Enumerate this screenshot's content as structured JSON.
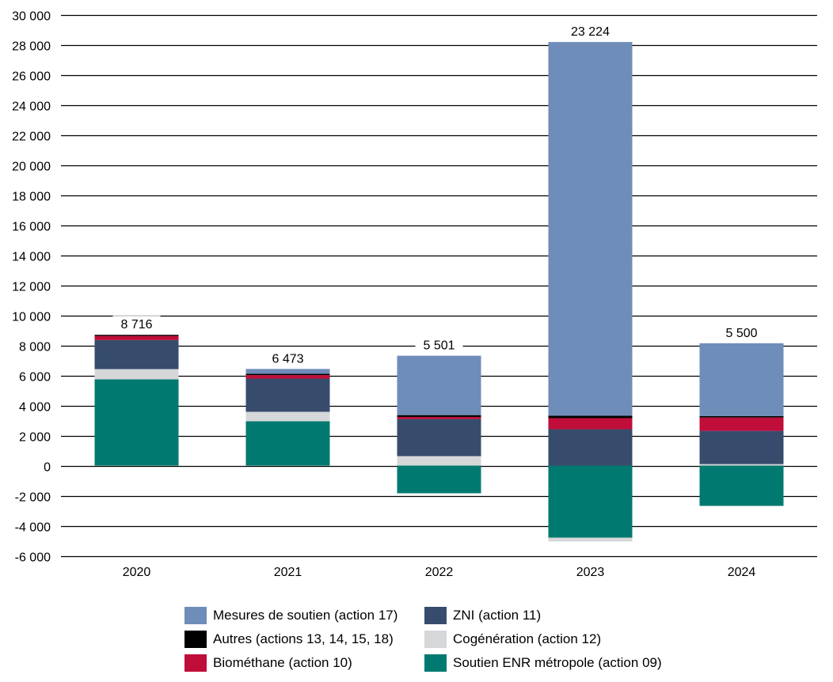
{
  "chart_data": {
    "type": "bar",
    "stacked": true,
    "title": "",
    "xlabel": "",
    "ylabel": "",
    "ylim": [
      -6000,
      30000
    ],
    "ytick_step": 2000,
    "yticks": [
      "30 000",
      "28 000",
      "26 000",
      "24 000",
      "22 000",
      "20 000",
      "18 000",
      "16 000",
      "14 000",
      "12 000",
      "10 000",
      "8 000",
      "6 000",
      "4 000",
      "2 000",
      "0",
      "-2 000",
      "-4 000",
      "-6 000"
    ],
    "grid": true,
    "legend_position": "bottom",
    "categories": [
      "2020",
      "2021",
      "2022",
      "2023",
      "2024"
    ],
    "totals": [
      8716,
      6473,
      5501,
      23224,
      5500
    ],
    "total_labels": [
      "8 716",
      "6 473",
      "5 501",
      "23 224",
      "5 500"
    ],
    "series": [
      {
        "name": "Soutien ENR métropole (action 09)",
        "color": "#007a70",
        "values": [
          5740,
          2950,
          -1840,
          -4790,
          -2680
        ]
      },
      {
        "name": "Cogénération (action 12)",
        "color": "#d6d7d9",
        "values": [
          680,
          630,
          630,
          -260,
          100
        ]
      },
      {
        "name": "ZNI (action 11)",
        "color": "#374c6c",
        "values": [
          1930,
          2210,
          2470,
          2420,
          2210
        ]
      },
      {
        "name": "Biométhane (action 10)",
        "color": "#c00d3a",
        "values": [
          280,
          230,
          140,
          740,
          890
        ]
      },
      {
        "name": "Autres (actions 13, 14, 15, 18)",
        "color": "#000000",
        "values": [
          70,
          90,
          120,
          160,
          100
        ]
      },
      {
        "name": "Mesures de soutien (action 17)",
        "color": "#6f8db9",
        "values": [
          0,
          320,
          3950,
          24860,
          4840
        ]
      }
    ]
  },
  "legend": [
    {
      "label": "Mesures de soutien (action 17)",
      "color": "#6f8db9"
    },
    {
      "label": "ZNI (action 11)",
      "color": "#374c6c"
    },
    {
      "label": "Autres (actions 13, 14, 15, 18)",
      "color": "#000000"
    },
    {
      "label": "Cogénération (action 12)",
      "color": "#d6d7d9"
    },
    {
      "label": "Biométhane (action 10)",
      "color": "#c00d3a"
    },
    {
      "label": "Soutien ENR métropole (action 09)",
      "color": "#007a70"
    }
  ]
}
